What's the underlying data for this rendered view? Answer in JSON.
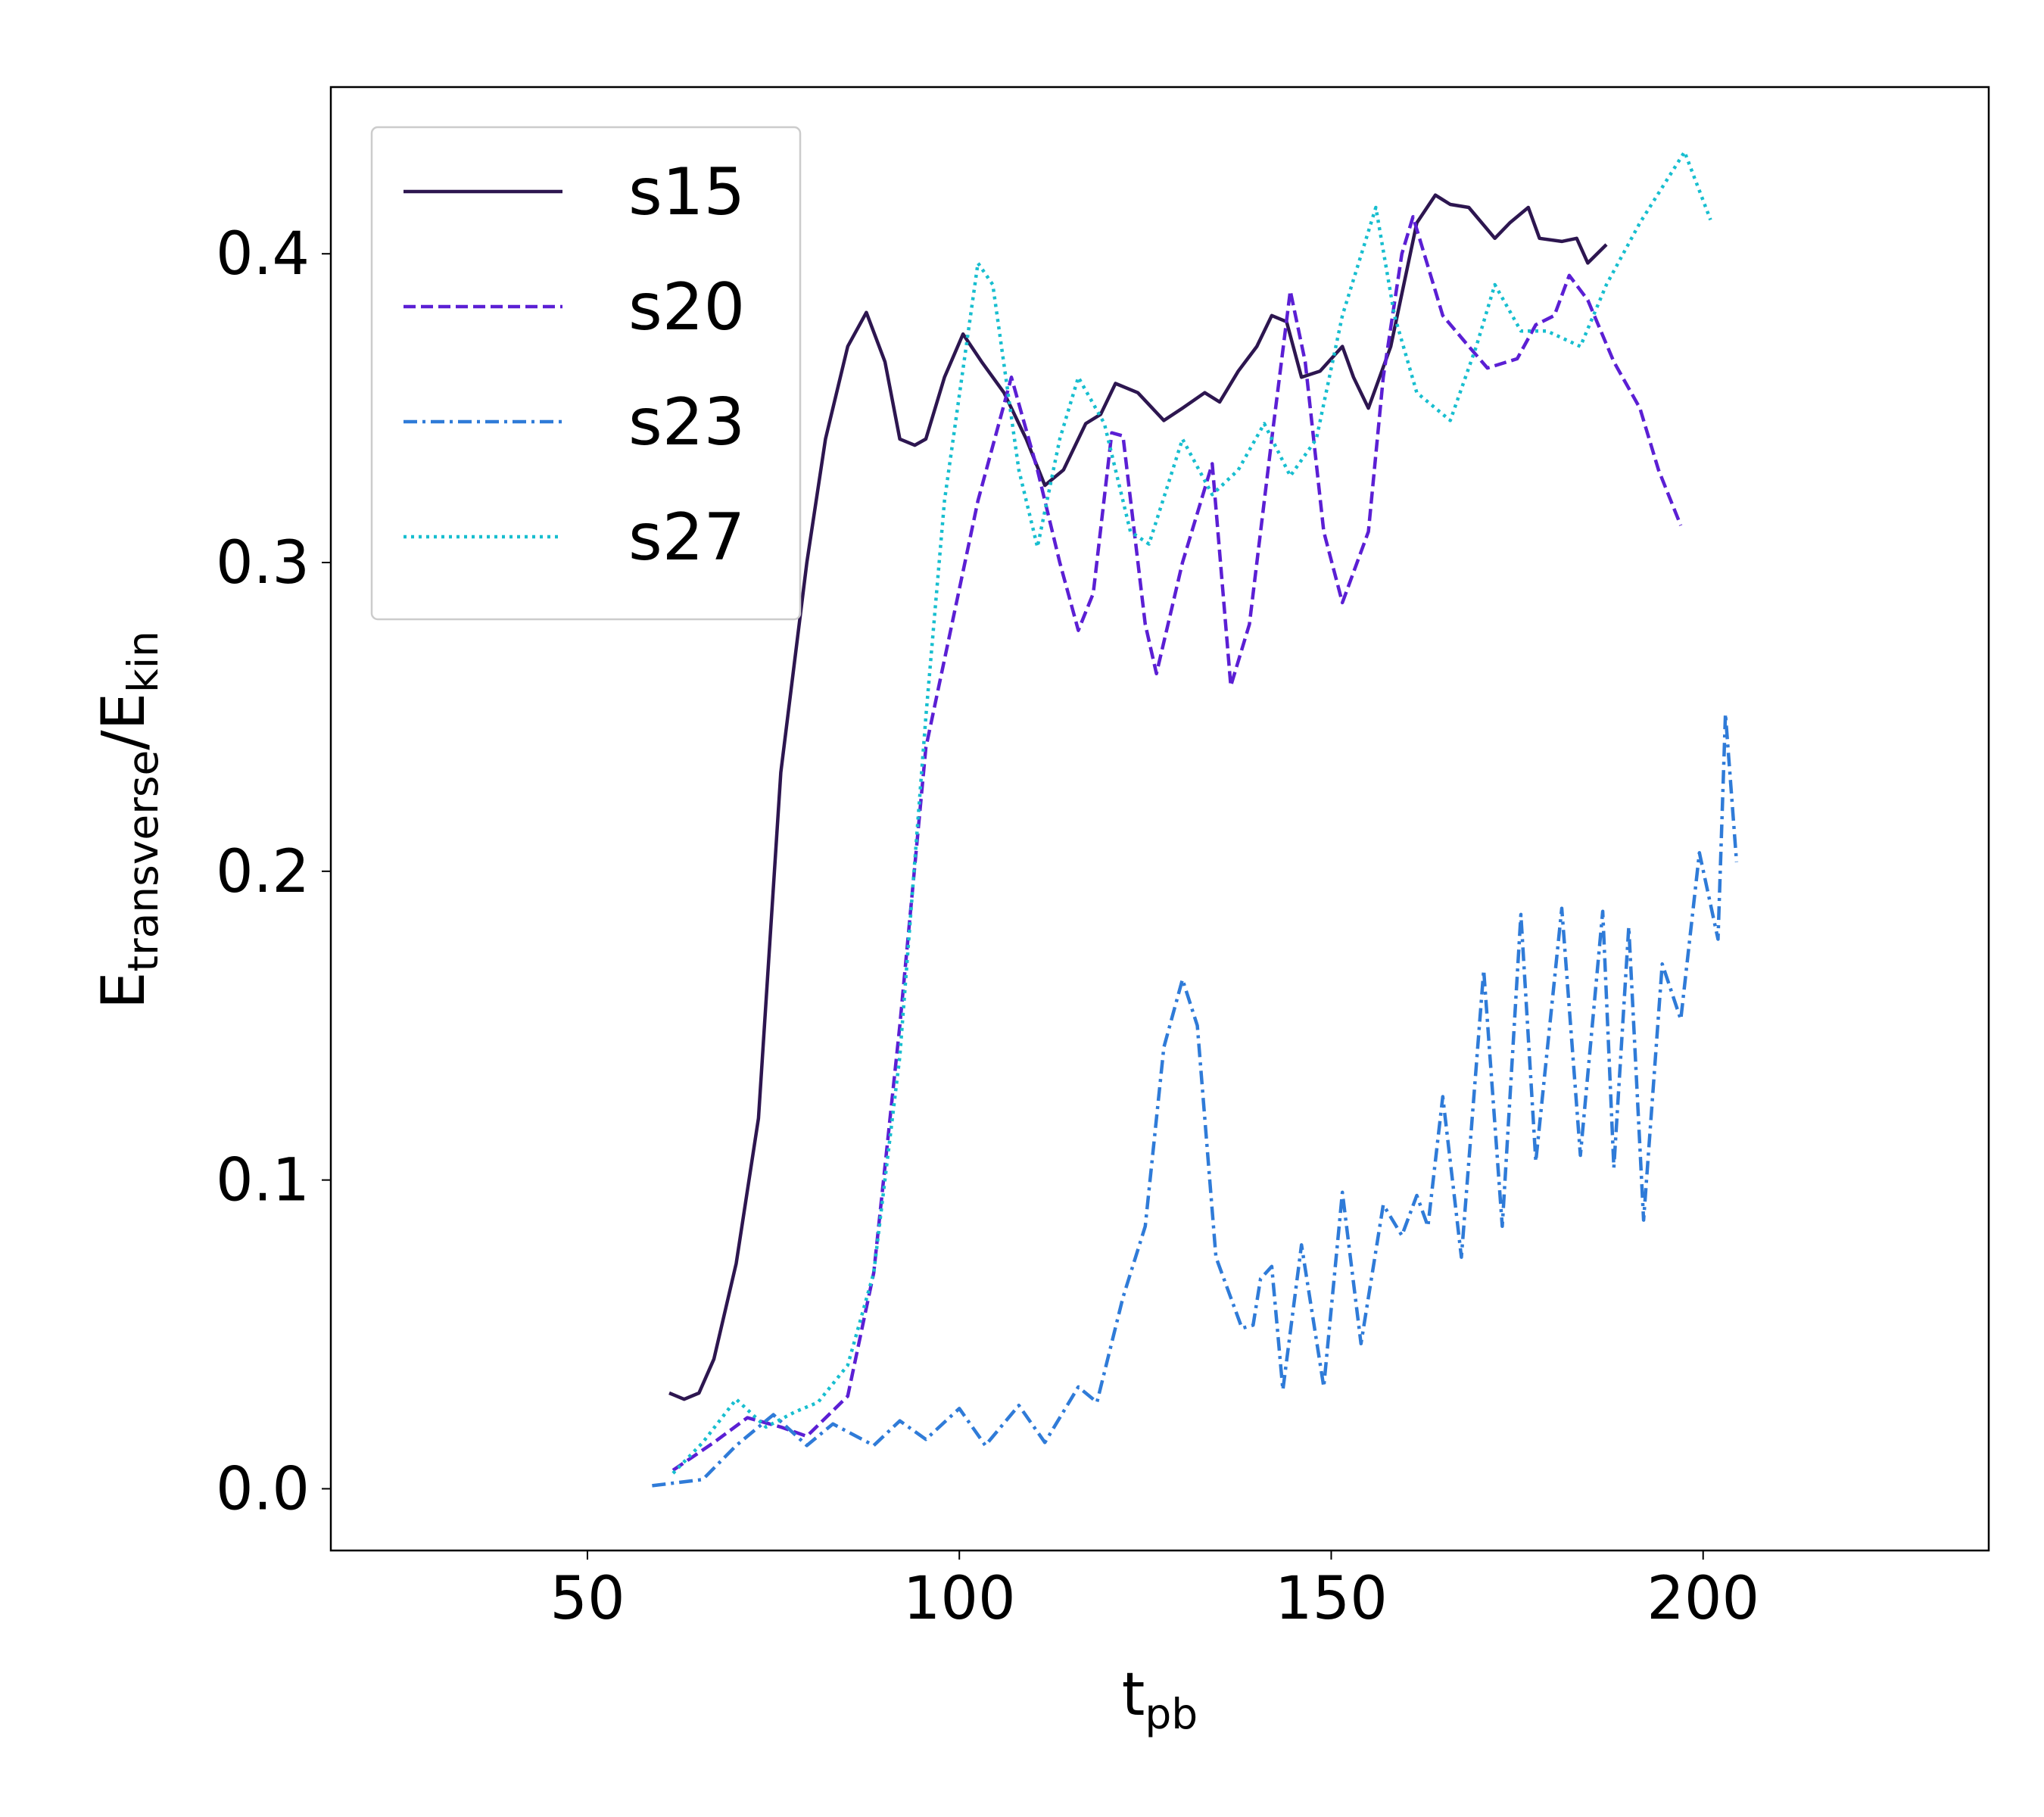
{
  "chart_data": {
    "type": "line",
    "xlabel_parts": [
      "t",
      "pb"
    ],
    "ylabel_parts": [
      "E",
      "transverse",
      "/E",
      "kin"
    ],
    "xlim": [
      15.5,
      238.4
    ],
    "ylim": [
      -0.02,
      0.454
    ],
    "xticks": [
      50,
      100,
      150,
      200
    ],
    "yticks": [
      {
        "value": 0,
        "label": "0.0"
      },
      0.1,
      0.2,
      0.3,
      0.4
    ],
    "legend": "upper left",
    "series": [
      {
        "name": "s15",
        "color": "#2d1650",
        "dash": "solid",
        "x": [
          61,
          63,
          65,
          67,
          70,
          73,
          76,
          79.5,
          82,
          85,
          87.5,
          90,
          92,
          94,
          95.5,
          98,
          100.5,
          103,
          106,
          109,
          111.5,
          114,
          117,
          119,
          121,
          124,
          127.5,
          130,
          133,
          135,
          137.5,
          140,
          142,
          144,
          146,
          148.5,
          151.5,
          153,
          155,
          158,
          161.5,
          164,
          166,
          168.5,
          172,
          174,
          176.5,
          178,
          181,
          183,
          184.5,
          187
        ],
        "values": [
          0.031,
          0.029,
          0.031,
          0.042,
          0.073,
          0.12,
          0.232,
          0.3,
          0.34,
          0.37,
          0.381,
          0.365,
          0.34,
          0.338,
          0.34,
          0.36,
          0.374,
          0.365,
          0.355,
          0.34,
          0.325,
          0.33,
          0.345,
          0.348,
          0.358,
          0.355,
          0.346,
          0.35,
          0.355,
          0.352,
          0.362,
          0.37,
          0.38,
          0.378,
          0.36,
          0.362,
          0.37,
          0.36,
          0.35,
          0.37,
          0.41,
          0.419,
          0.416,
          0.415,
          0.405,
          0.41,
          0.415,
          0.405,
          0.404,
          0.405,
          0.397,
          0.403
        ]
      },
      {
        "name": "s20",
        "color": "#5b1fd4",
        "dash": "dashed",
        "x": [
          61.5,
          67,
          71.5,
          76,
          79.5,
          85,
          88.5,
          92,
          95.5,
          99,
          102.5,
          107,
          110.5,
          113.5,
          116,
          118,
          120.5,
          122,
          125,
          126.5,
          130,
          134,
          136.5,
          139,
          142,
          144.5,
          146.5,
          149,
          151.5,
          155,
          157,
          159.5,
          161,
          165,
          168.5,
          171,
          175,
          177.5,
          180,
          182,
          184.5,
          188,
          191.5,
          194,
          197
        ],
        "values": [
          0.006,
          0.015,
          0.023,
          0.02,
          0.017,
          0.03,
          0.07,
          0.15,
          0.24,
          0.28,
          0.32,
          0.36,
          0.33,
          0.3,
          0.278,
          0.29,
          0.342,
          0.341,
          0.28,
          0.264,
          0.3,
          0.332,
          0.26,
          0.28,
          0.34,
          0.388,
          0.365,
          0.31,
          0.287,
          0.31,
          0.36,
          0.4,
          0.412,
          0.38,
          0.37,
          0.363,
          0.366,
          0.377,
          0.38,
          0.393,
          0.385,
          0.365,
          0.35,
          0.33,
          0.312
        ]
      },
      {
        "name": "s23",
        "color": "#2f7bd8",
        "dash": "dashdot",
        "x": [
          58.7,
          65.5,
          70,
          75,
          79.5,
          83,
          88.5,
          92,
          95.5,
          100,
          103.5,
          108,
          111.5,
          116,
          118.5,
          122,
          125,
          127.5,
          130,
          132,
          134.5,
          138,
          139.5,
          140.5,
          142,
          143.5,
          146,
          149,
          151.5,
          154,
          157,
          159.5,
          161.5,
          163,
          165,
          167.5,
          170.5,
          173,
          175.5,
          177.5,
          181,
          183.5,
          186.5,
          188,
          190,
          192,
          194.5,
          197,
          199.5,
          202,
          203,
          204.5
        ],
        "values": [
          0.001,
          0.003,
          0.014,
          0.024,
          0.014,
          0.021,
          0.014,
          0.022,
          0.016,
          0.026,
          0.014,
          0.027,
          0.015,
          0.033,
          0.028,
          0.062,
          0.085,
          0.143,
          0.165,
          0.15,
          0.075,
          0.052,
          0.053,
          0.068,
          0.072,
          0.032,
          0.079,
          0.033,
          0.096,
          0.047,
          0.092,
          0.082,
          0.095,
          0.085,
          0.127,
          0.075,
          0.168,
          0.085,
          0.186,
          0.106,
          0.188,
          0.108,
          0.187,
          0.104,
          0.182,
          0.087,
          0.17,
          0.152,
          0.206,
          0.178,
          0.251,
          0.203
        ]
      },
      {
        "name": "s27",
        "color": "#17becf",
        "dash": "dotted",
        "x": [
          61.5,
          65.5,
          70,
          74,
          78,
          81,
          85,
          88.5,
          92,
          95.5,
          98,
          102.5,
          104.5,
          108,
          110.5,
          113.5,
          116,
          119.5,
          123,
          125.5,
          130,
          134,
          137.5,
          141,
          144.5,
          148,
          151.5,
          156,
          158.5,
          161.5,
          166,
          169.5,
          172,
          175.5,
          179,
          183.5,
          187,
          191.5,
          197.5,
          201
        ],
        "values": [
          0.005,
          0.015,
          0.029,
          0.02,
          0.025,
          0.028,
          0.04,
          0.07,
          0.14,
          0.25,
          0.32,
          0.397,
          0.39,
          0.33,
          0.305,
          0.34,
          0.36,
          0.345,
          0.31,
          0.306,
          0.34,
          0.322,
          0.33,
          0.345,
          0.328,
          0.34,
          0.38,
          0.415,
          0.38,
          0.355,
          0.346,
          0.37,
          0.39,
          0.375,
          0.375,
          0.37,
          0.39,
          0.41,
          0.433,
          0.411
        ]
      }
    ]
  }
}
